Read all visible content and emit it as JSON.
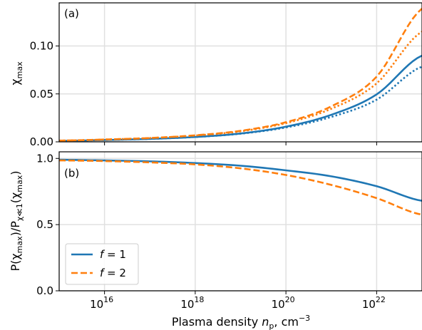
{
  "chart_data": {
    "type": "line",
    "x_scale": "log",
    "xlabel": "Plasma density n_p, cm^-3",
    "xlim": [
      1000000000000000.0,
      1e+23
    ],
    "x_ticks": [
      1e+16,
      1e+18,
      1e+20,
      1e+22
    ],
    "x_tick_labels": [
      {
        "base": "10",
        "exp": "16"
      },
      {
        "base": "10",
        "exp": "18"
      },
      {
        "base": "10",
        "exp": "20"
      },
      {
        "base": "10",
        "exp": "22"
      }
    ],
    "grid": true,
    "colors": {
      "f1": "#1f77b4",
      "f2": "#ff7f0e"
    },
    "legend": {
      "placement": "lower-left of panel (b)",
      "entries": [
        {
          "label": "f = 1",
          "color": "#1f77b4",
          "style": "solid"
        },
        {
          "label": "f = 2",
          "color": "#ff7f0e",
          "style": "dashed"
        }
      ]
    },
    "panels": [
      {
        "id": "a",
        "label": "(a)",
        "ylabel": "χ_max",
        "ylim": [
          0,
          0.145
        ],
        "y_ticks": [
          0.0,
          0.05,
          0.1
        ],
        "y_tick_labels": [
          "0.00",
          "0.05",
          "0.10"
        ],
        "x": [
          1000000000000000.0,
          1e+16,
          1e+17,
          1e+18,
          1e+19,
          1e+20,
          1e+21,
          1e+22,
          1e+23
        ],
        "series": [
          {
            "color": "#1f77b4",
            "style": "solid",
            "values": [
              0.001,
              0.0019,
              0.0031,
              0.0051,
              0.0087,
              0.0158,
              0.0282,
              0.0495,
              0.09
            ]
          },
          {
            "color": "#1f77b4",
            "style": "dotted",
            "values": [
              0.001,
              0.0019,
              0.0031,
              0.0051,
              0.0085,
              0.015,
              0.026,
              0.044,
              0.0785
            ]
          },
          {
            "color": "#ff7f0e",
            "style": "dashed",
            "values": [
              0.0013,
              0.0024,
              0.004,
              0.0068,
              0.0115,
              0.0205,
              0.037,
              0.068,
              0.139
            ]
          },
          {
            "color": "#ff7f0e",
            "style": "dotted",
            "values": [
              0.0013,
              0.0024,
              0.004,
              0.0066,
              0.011,
              0.0195,
              0.0345,
              0.061,
              0.115
            ]
          }
        ]
      },
      {
        "id": "b",
        "label": "(b)",
        "ylabel": "P(χ_max)/P_χ≪1(χ_max)",
        "ylim": [
          0.0,
          1.05
        ],
        "y_ticks": [
          0.0,
          0.5,
          1.0
        ],
        "y_tick_labels": [
          "0.0",
          "0.5",
          "1.0"
        ],
        "x": [
          1000000000000000.0,
          1e+16,
          1e+17,
          1e+18,
          1e+19,
          1e+20,
          1e+21,
          1e+22,
          1e+23
        ],
        "series": [
          {
            "color": "#1f77b4",
            "style": "solid",
            "name": "f = 1",
            "values": [
              0.99,
              0.985,
              0.978,
              0.965,
              0.945,
              0.91,
              0.865,
              0.79,
              0.68
            ]
          },
          {
            "color": "#ff7f0e",
            "style": "dashed",
            "name": "f = 2",
            "values": [
              0.985,
              0.98,
              0.97,
              0.955,
              0.925,
              0.875,
              0.8,
              0.7,
              0.575
            ]
          }
        ]
      }
    ]
  }
}
